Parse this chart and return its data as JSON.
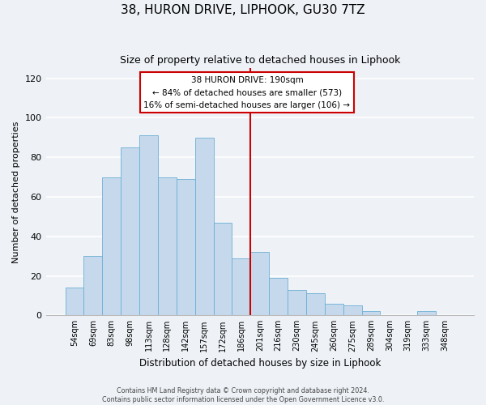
{
  "title": "38, HURON DRIVE, LIPHOOK, GU30 7TZ",
  "subtitle": "Size of property relative to detached houses in Liphook",
  "xlabel": "Distribution of detached houses by size in Liphook",
  "ylabel": "Number of detached properties",
  "footer_line1": "Contains HM Land Registry data © Crown copyright and database right 2024.",
  "footer_line2": "Contains public sector information licensed under the Open Government Licence v3.0.",
  "bar_labels": [
    "54sqm",
    "69sqm",
    "83sqm",
    "98sqm",
    "113sqm",
    "128sqm",
    "142sqm",
    "157sqm",
    "172sqm",
    "186sqm",
    "201sqm",
    "216sqm",
    "230sqm",
    "245sqm",
    "260sqm",
    "275sqm",
    "289sqm",
    "304sqm",
    "319sqm",
    "333sqm",
    "348sqm"
  ],
  "bar_values": [
    14,
    30,
    70,
    85,
    91,
    70,
    69,
    90,
    47,
    29,
    32,
    19,
    13,
    11,
    6,
    5,
    2,
    0,
    0,
    2,
    0
  ],
  "bar_color": "#c6d9ec",
  "bar_edge_color": "#6aafd4",
  "vertical_line_x": 9.5,
  "vertical_line_color": "#cc0000",
  "annotation_title": "38 HURON DRIVE: 190sqm",
  "annotation_line1": "← 84% of detached houses are smaller (573)",
  "annotation_line2": "16% of semi-detached houses are larger (106) →",
  "annotation_box_color": "#ffffff",
  "annotation_box_edgecolor": "#cc0000",
  "ylim": [
    0,
    125
  ],
  "yticks": [
    0,
    20,
    40,
    60,
    80,
    100,
    120
  ],
  "background_color": "#eef2f7",
  "plot_background_color": "#eef2f7",
  "grid_color": "#ffffff",
  "title_fontsize": 11,
  "subtitle_fontsize": 9
}
